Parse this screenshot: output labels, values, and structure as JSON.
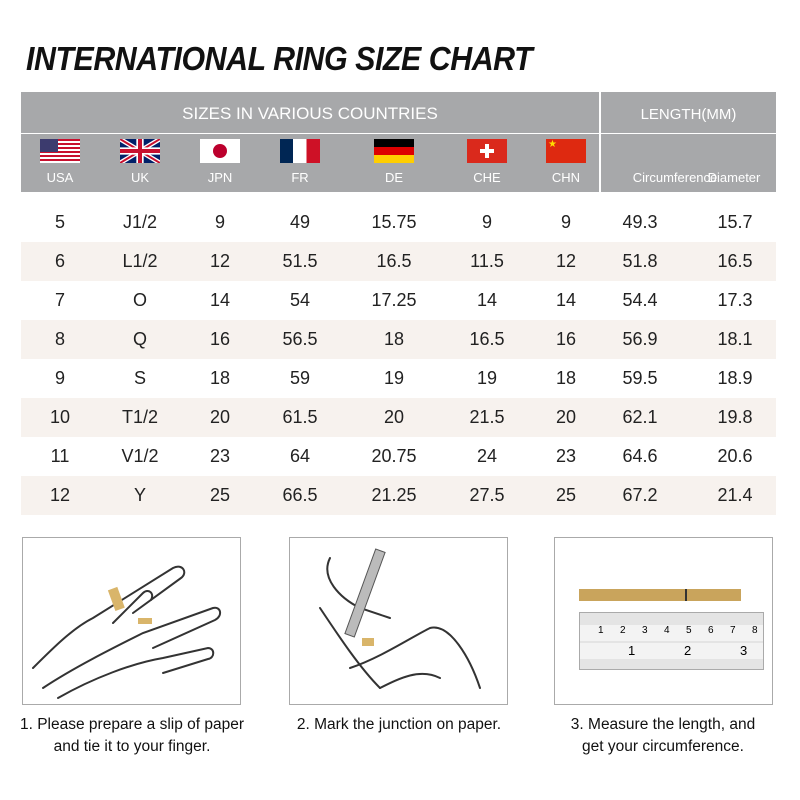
{
  "title": "INTERNATIONAL RING SIZE CHART",
  "header": {
    "sizes_label": "SIZES IN VARIOUS COUNTRIES",
    "length_label": "LENGTH(MM)",
    "countries": [
      {
        "label": "USA",
        "flag": "us-flag"
      },
      {
        "label": "UK",
        "flag": "uk-flag"
      },
      {
        "label": "JPN",
        "flag": "japan-flag"
      },
      {
        "label": "FR",
        "flag": "france-flag"
      },
      {
        "label": "DE",
        "flag": "germany-flag"
      },
      {
        "label": "CHE",
        "flag": "switzerland-flag"
      },
      {
        "label": "CHN",
        "flag": "china-flag"
      }
    ],
    "length_cols": [
      "Circumference",
      "Diameter"
    ]
  },
  "rows": [
    [
      "5",
      "J1/2",
      "9",
      "49",
      "15.75",
      "9",
      "9",
      "49.3",
      "15.7"
    ],
    [
      "6",
      "L1/2",
      "12",
      "51.5",
      "16.5",
      "11.5",
      "12",
      "51.8",
      "16.5"
    ],
    [
      "7",
      "O",
      "14",
      "54",
      "17.25",
      "14",
      "14",
      "54.4",
      "17.3"
    ],
    [
      "8",
      "Q",
      "16",
      "56.5",
      "18",
      "16.5",
      "16",
      "56.9",
      "18.1"
    ],
    [
      "9",
      "S",
      "18",
      "59",
      "19",
      "19",
      "18",
      "59.5",
      "18.9"
    ],
    [
      "10",
      "T1/2",
      "20",
      "61.5",
      "20",
      "21.5",
      "20",
      "62.1",
      "19.8"
    ],
    [
      "11",
      "V1/2",
      "23",
      "64",
      "20.75",
      "24",
      "23",
      "64.6",
      "20.6"
    ],
    [
      "12",
      "Y",
      "25",
      "66.5",
      "21.25",
      "27.5",
      "25",
      "67.2",
      "21.4"
    ]
  ],
  "steps": [
    {
      "line1": "1. Please prepare a slip of paper",
      "line2": "and tie it to your finger."
    },
    {
      "line1": "2. Mark the junction on paper.",
      "line2": ""
    },
    {
      "line1": "3. Measure the length, and",
      "line2": "get your circumference."
    }
  ],
  "ruler": {
    "top_ticks": [
      "1",
      "2",
      "3",
      "4",
      "5",
      "6",
      "7",
      "8"
    ],
    "bottom_ticks": [
      "1",
      "2",
      "3"
    ]
  },
  "colors": {
    "header": "#a7a8aa",
    "row_alt": "#f7f2ee",
    "paper": "#c9a45c"
  }
}
